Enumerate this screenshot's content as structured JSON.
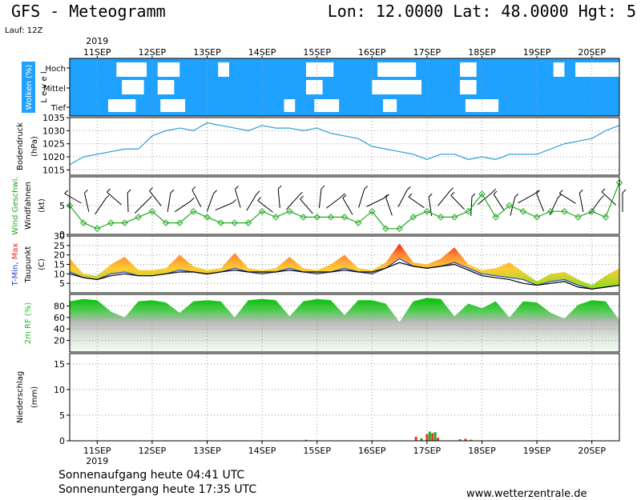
{
  "header": {
    "title": "GFS - Meteogramm",
    "coords": "Lon: 12.0000 Lat: 48.0000 Hgt: 5",
    "run": "Lauf: 12Z"
  },
  "footer": {
    "sunrise": "Sonnenaufgang heute 04:41 UTC",
    "sunset": "Sonnenuntergang heute 17:35 UTC",
    "site": "www.wetterzentrale.de"
  },
  "time_axis": {
    "year": "2019",
    "dates": [
      "11SEP",
      "12SEP",
      "13SEP",
      "14SEP",
      "15SEP",
      "16SEP",
      "17SEP",
      "18SEP",
      "19SEP",
      "20SEP"
    ]
  },
  "colors": {
    "cloud_bg": "#1fa2ff",
    "pressure": "#2aa0d0",
    "wind": "#22aa22",
    "tmin": "#2244cc",
    "tmax": "#ee2222",
    "humidity": "#22bb22"
  },
  "chart_data": [
    {
      "type": "heatmap",
      "panel": "clouds",
      "ylabel": "Wolken (%) L e v e l",
      "levels": [
        "Hoch",
        "Mittel",
        "Tief"
      ],
      "blocks": [
        {
          "level": "Hoch",
          "from": 11.35,
          "to": 11.9
        },
        {
          "level": "Hoch",
          "from": 12.1,
          "to": 12.5
        },
        {
          "level": "Hoch",
          "from": 13.2,
          "to": 13.4
        },
        {
          "level": "Hoch",
          "from": 14.8,
          "to": 15.3
        },
        {
          "level": "Hoch",
          "from": 16.1,
          "to": 16.8
        },
        {
          "level": "Hoch",
          "from": 17.6,
          "to": 17.9
        },
        {
          "level": "Hoch",
          "from": 19.3,
          "to": 19.5
        },
        {
          "level": "Hoch",
          "from": 19.7,
          "to": 20.5
        },
        {
          "level": "Mittel",
          "from": 11.45,
          "to": 11.85
        },
        {
          "level": "Mittel",
          "from": 12.1,
          "to": 12.4
        },
        {
          "level": "Mittel",
          "from": 14.8,
          "to": 15.1
        },
        {
          "level": "Mittel",
          "from": 16.0,
          "to": 16.9
        },
        {
          "level": "Mittel",
          "from": 17.6,
          "to": 17.9
        },
        {
          "level": "Tief",
          "from": 11.2,
          "to": 11.7
        },
        {
          "level": "Tief",
          "from": 12.15,
          "to": 12.6
        },
        {
          "level": "Tief",
          "from": 14.4,
          "to": 14.6
        },
        {
          "level": "Tief",
          "from": 14.95,
          "to": 15.4
        },
        {
          "level": "Tief",
          "from": 16.2,
          "to": 16.45
        },
        {
          "level": "Tief",
          "from": 17.7,
          "to": 18.3
        }
      ]
    },
    {
      "type": "line",
      "panel": "pressure",
      "ylabel": "Bodendruck (hPa)",
      "ylim": [
        1013,
        1035
      ],
      "yticks": [
        1015,
        1020,
        1025,
        1030,
        1035
      ],
      "x": [
        10.5,
        10.75,
        11.0,
        11.25,
        11.5,
        11.75,
        12.0,
        12.25,
        12.5,
        12.75,
        13.0,
        13.25,
        13.5,
        13.75,
        14.0,
        14.25,
        14.5,
        14.75,
        15.0,
        15.25,
        15.5,
        15.75,
        16.0,
        16.25,
        16.5,
        16.75,
        17.0,
        17.25,
        17.5,
        17.75,
        18.0,
        18.25,
        18.5,
        18.75,
        19.0,
        19.25,
        19.5,
        19.75,
        20.0,
        20.25,
        20.5
      ],
      "series": [
        {
          "values": [
            1017,
            1020,
            1021,
            1022,
            1023,
            1023,
            1028,
            1030,
            1031,
            1030,
            1033,
            1032,
            1031,
            1030,
            1032,
            1031,
            1031,
            1030,
            1031,
            1029,
            1028,
            1027,
            1024,
            1023,
            1022,
            1021,
            1019,
            1021,
            1021,
            1019,
            1020,
            1019,
            1021,
            1021,
            1021,
            1023,
            1025,
            1026,
            1027,
            1030,
            1032
          ]
        }
      ]
    },
    {
      "type": "line",
      "panel": "wind",
      "ylabel": "Wind Geschwi. Windfahnen (kt)",
      "ylim": [
        0,
        10
      ],
      "yticks": [
        0,
        5
      ],
      "x": [
        10.5,
        10.75,
        11.0,
        11.25,
        11.5,
        11.75,
        12.0,
        12.25,
        12.5,
        12.75,
        13.0,
        13.25,
        13.5,
        13.75,
        14.0,
        14.25,
        14.5,
        14.75,
        15.0,
        15.25,
        15.5,
        15.75,
        16.0,
        16.25,
        16.5,
        16.75,
        17.0,
        17.25,
        17.5,
        17.75,
        18.0,
        18.25,
        18.5,
        18.75,
        19.0,
        19.25,
        19.5,
        19.75,
        20.0,
        20.25,
        20.5
      ],
      "series": [
        {
          "name": "Wind Geschwi.",
          "values": [
            5,
            2,
            1,
            2,
            2,
            3,
            4,
            2,
            2,
            4,
            3,
            2,
            2,
            2,
            4,
            3,
            4,
            3,
            3,
            3,
            3,
            2,
            4,
            1,
            1,
            3,
            4,
            3,
            3,
            4,
            7,
            3,
            5,
            4,
            3,
            4,
            4,
            3,
            4,
            3,
            9
          ]
        }
      ]
    },
    {
      "type": "area",
      "panel": "temperature",
      "ylabel": "T-Min, Max Taupunkt (C)",
      "ylim": [
        0,
        30
      ],
      "yticks": [
        5,
        10,
        15,
        20,
        25,
        30
      ],
      "x": [
        10.5,
        10.75,
        11.0,
        11.25,
        11.5,
        11.75,
        12.0,
        12.25,
        12.5,
        12.75,
        13.0,
        13.25,
        13.5,
        13.75,
        14.0,
        14.25,
        14.5,
        14.75,
        15.0,
        15.25,
        15.5,
        15.75,
        16.0,
        16.25,
        16.5,
        16.75,
        17.0,
        17.25,
        17.5,
        17.75,
        18.0,
        18.25,
        18.5,
        18.75,
        19.0,
        19.25,
        19.5,
        19.75,
        20.0,
        20.25,
        20.5
      ],
      "series": [
        {
          "name": "T-Max",
          "values": [
            18,
            10,
            9,
            15,
            19,
            12,
            12,
            13,
            20,
            14,
            12,
            13,
            21,
            13,
            12,
            13,
            19,
            13,
            12,
            15,
            20,
            13,
            12,
            16,
            26,
            16,
            15,
            18,
            24,
            15,
            12,
            13,
            16,
            11,
            6,
            10,
            11,
            7,
            4,
            9,
            13
          ]
        },
        {
          "name": "T-Min",
          "values": [
            11,
            8,
            7,
            10,
            11,
            9,
            9,
            10,
            12,
            11,
            10,
            11,
            13,
            11,
            10,
            11,
            13,
            11,
            10,
            11,
            13,
            11,
            10,
            13,
            18,
            14,
            13,
            14,
            16,
            13,
            10,
            9,
            8,
            7,
            4,
            6,
            7,
            4,
            2,
            3,
            4
          ]
        },
        {
          "name": "Taupunkt",
          "values": [
            10,
            8,
            7,
            9,
            10,
            9,
            9,
            10,
            11,
            11,
            10,
            11,
            12,
            11,
            11,
            11,
            12,
            11,
            11,
            11,
            12,
            11,
            11,
            13,
            16,
            14,
            13,
            14,
            15,
            12,
            9,
            8,
            7,
            5,
            4,
            5,
            6,
            3,
            2,
            3,
            4
          ]
        }
      ]
    },
    {
      "type": "area",
      "panel": "humidity",
      "ylabel": "2m RF (%)",
      "ylim": [
        0,
        100
      ],
      "yticks": [
        20,
        40,
        60,
        80
      ],
      "x": [
        10.5,
        10.75,
        11.0,
        11.25,
        11.5,
        11.75,
        12.0,
        12.25,
        12.5,
        12.75,
        13.0,
        13.25,
        13.5,
        13.75,
        14.0,
        14.25,
        14.5,
        14.75,
        15.0,
        15.25,
        15.5,
        15.75,
        16.0,
        16.25,
        16.5,
        16.75,
        17.0,
        17.25,
        17.5,
        17.75,
        18.0,
        18.25,
        18.5,
        18.75,
        19.0,
        19.25,
        19.5,
        19.75,
        20.0,
        20.25,
        20.5
      ],
      "series": [
        {
          "values": [
            88,
            92,
            90,
            70,
            60,
            88,
            90,
            86,
            68,
            88,
            90,
            88,
            60,
            90,
            92,
            90,
            62,
            88,
            92,
            90,
            64,
            90,
            90,
            84,
            52,
            88,
            94,
            92,
            62,
            84,
            76,
            88,
            60,
            88,
            86,
            68,
            58,
            82,
            90,
            88,
            55
          ]
        }
      ]
    },
    {
      "type": "bar",
      "panel": "precipitation",
      "ylabel": "Niederschlag (mm)",
      "ylim": [
        0,
        17
      ],
      "yticks": [
        0,
        5,
        10,
        15
      ],
      "x": [
        12.25,
        14.8,
        14.9,
        16.8,
        16.9,
        17.0,
        17.05,
        17.1,
        17.15,
        17.2,
        17.6,
        17.7,
        17.8
      ],
      "values": [
        0.1,
        0.2,
        0.1,
        0.8,
        0.5,
        1.3,
        1.8,
        1.5,
        1.7,
        0.6,
        0.3,
        0.4,
        0.2
      ]
    }
  ]
}
